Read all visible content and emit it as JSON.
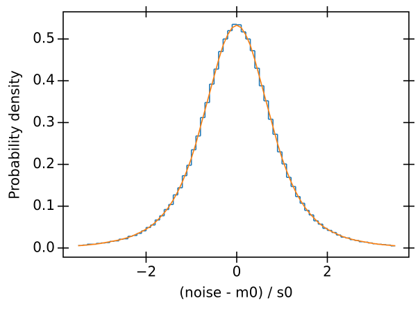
{
  "chart_data": {
    "type": "histogram",
    "xlabel": "(noise - m0) / s0",
    "ylabel": "Probability density",
    "bins": [
      -3.5,
      -3.4,
      -3.3,
      -3.2,
      -3.1,
      -3.0,
      -2.9,
      -2.8,
      -2.7,
      -2.6,
      -2.5,
      -2.4,
      -2.3,
      -2.2,
      -2.1,
      -2.0,
      -1.9,
      -1.8,
      -1.7,
      -1.6,
      -1.5,
      -1.4,
      -1.3,
      -1.2,
      -1.1,
      -1.0,
      -0.9,
      -0.8,
      -0.7,
      -0.6,
      -0.5,
      -0.4,
      -0.3,
      -0.2,
      -0.1,
      0,
      0.1,
      0.2,
      0.3,
      0.4,
      0.5,
      0.6,
      0.7,
      0.8,
      0.9,
      1.0,
      1.1,
      1.2,
      1.3,
      1.4,
      1.5,
      1.6,
      1.7,
      1.8,
      1.9,
      2.0,
      2.1,
      2.2,
      2.3,
      2.4,
      2.5,
      2.6,
      2.7,
      2.8,
      2.9,
      3.0,
      3.1,
      3.2,
      3.3,
      3.4,
      3.5
    ],
    "values": [
      0.006,
      0.007,
      0.009,
      0.009,
      0.011,
      0.012,
      0.013,
      0.016,
      0.017,
      0.021,
      0.022,
      0.028,
      0.03,
      0.035,
      0.041,
      0.049,
      0.055,
      0.067,
      0.077,
      0.092,
      0.104,
      0.127,
      0.144,
      0.173,
      0.198,
      0.235,
      0.268,
      0.312,
      0.348,
      0.392,
      0.428,
      0.47,
      0.5,
      0.52,
      0.535,
      0.534,
      0.517,
      0.5,
      0.472,
      0.43,
      0.388,
      0.352,
      0.308,
      0.272,
      0.23,
      0.201,
      0.169,
      0.147,
      0.123,
      0.107,
      0.09,
      0.079,
      0.065,
      0.057,
      0.047,
      0.042,
      0.037,
      0.031,
      0.026,
      0.024,
      0.02,
      0.018,
      0.015,
      0.014,
      0.012,
      0.01,
      0.009,
      0.008,
      0.007,
      0.005
    ],
    "color": "#1f77b4",
    "fit": {
      "color": "#ff7f0e",
      "x": [
        -3.5,
        -3.4,
        -3.3,
        -3.2,
        -3.1,
        -3.0,
        -2.9,
        -2.8,
        -2.7,
        -2.6,
        -2.5,
        -2.4,
        -2.3,
        -2.2,
        -2.1,
        -2.0,
        -1.9,
        -1.8,
        -1.7,
        -1.6,
        -1.5,
        -1.4,
        -1.3,
        -1.2,
        -1.1,
        -1.0,
        -0.9,
        -0.8,
        -0.7,
        -0.6,
        -0.5,
        -0.4,
        -0.3,
        -0.2,
        -0.1,
        0,
        0.1,
        0.2,
        0.3,
        0.4,
        0.5,
        0.6,
        0.7,
        0.8,
        0.9,
        1.0,
        1.1,
        1.2,
        1.3,
        1.4,
        1.5,
        1.6,
        1.7,
        1.8,
        1.9,
        2.0,
        2.1,
        2.2,
        2.3,
        2.4,
        2.5,
        2.6,
        2.7,
        2.8,
        2.9,
        3.0,
        3.1,
        3.2,
        3.3,
        3.4,
        3.5
      ],
      "values": [
        0.0054,
        0.0062,
        0.0071,
        0.0082,
        0.0095,
        0.011,
        0.013,
        0.015,
        0.017,
        0.019,
        0.022,
        0.025,
        0.029,
        0.034,
        0.039,
        0.045,
        0.052,
        0.061,
        0.072,
        0.084,
        0.098,
        0.115,
        0.135,
        0.158,
        0.185,
        0.215,
        0.25,
        0.29,
        0.33,
        0.37,
        0.41,
        0.45,
        0.485,
        0.51,
        0.527,
        0.533,
        0.527,
        0.51,
        0.485,
        0.45,
        0.41,
        0.37,
        0.33,
        0.29,
        0.25,
        0.215,
        0.185,
        0.158,
        0.135,
        0.115,
        0.098,
        0.084,
        0.072,
        0.061,
        0.052,
        0.045,
        0.039,
        0.034,
        0.029,
        0.025,
        0.022,
        0.019,
        0.017,
        0.015,
        0.013,
        0.011,
        0.0095,
        0.0082,
        0.0071,
        0.0062,
        0.0054
      ]
    },
    "xlim": [
      -3.83,
      3.8
    ],
    "ylim": [
      -0.022,
      0.565
    ],
    "xticks": [
      {
        "value": -2,
        "label": "−2"
      },
      0,
      2
    ],
    "yticks": [
      {
        "value": 0,
        "label": "0.0"
      },
      0.1,
      0.2,
      0.3,
      0.4,
      0.5
    ]
  }
}
